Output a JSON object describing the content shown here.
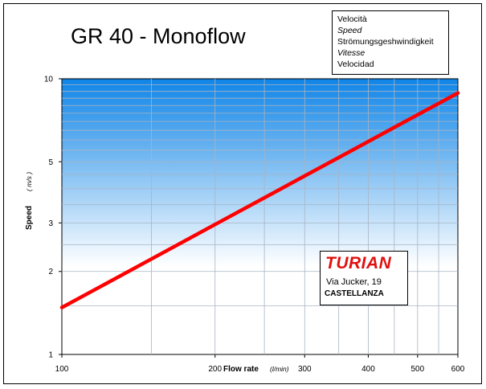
{
  "chart_data": {
    "type": "line",
    "title": "GR 40 - Monoflow",
    "xlabel": "Flow rate",
    "xunit": "(l/min)",
    "ylabel": "Speed",
    "yunit": "( m/s )",
    "xscale": "log",
    "yscale": "log",
    "xlim": [
      100,
      600
    ],
    "ylim": [
      1,
      10
    ],
    "x_ticks": [
      100,
      200,
      300,
      400,
      500,
      600
    ],
    "y_ticks": [
      1,
      2,
      3,
      5,
      10
    ],
    "grid": true,
    "series": [
      {
        "color": "#ff0000",
        "x": [
          100,
          150,
          200,
          250,
          300,
          350,
          400,
          450,
          500,
          550,
          600
        ],
        "y": [
          1.48,
          2.22,
          2.96,
          3.7,
          4.44,
          5.18,
          5.92,
          6.66,
          7.4,
          8.14,
          8.88
        ]
      }
    ]
  },
  "legend": {
    "lines": [
      {
        "text": "Velocità",
        "italic": false
      },
      {
        "text": "Speed",
        "italic": true
      },
      {
        "text": "Strömungsgeshwindigkeit",
        "italic": false
      },
      {
        "text": "Vitesse",
        "italic": true
      },
      {
        "text": "Velocidad",
        "italic": false
      }
    ]
  },
  "company": {
    "name": "TURIAN",
    "address": "Via Jucker, 19",
    "city": "CASTELLANZA"
  },
  "colors": {
    "line": "#ff0000",
    "gradient_top": "#0f85e8",
    "gradient_bottom": "#ffffff",
    "grid": "#a8b4c4"
  }
}
